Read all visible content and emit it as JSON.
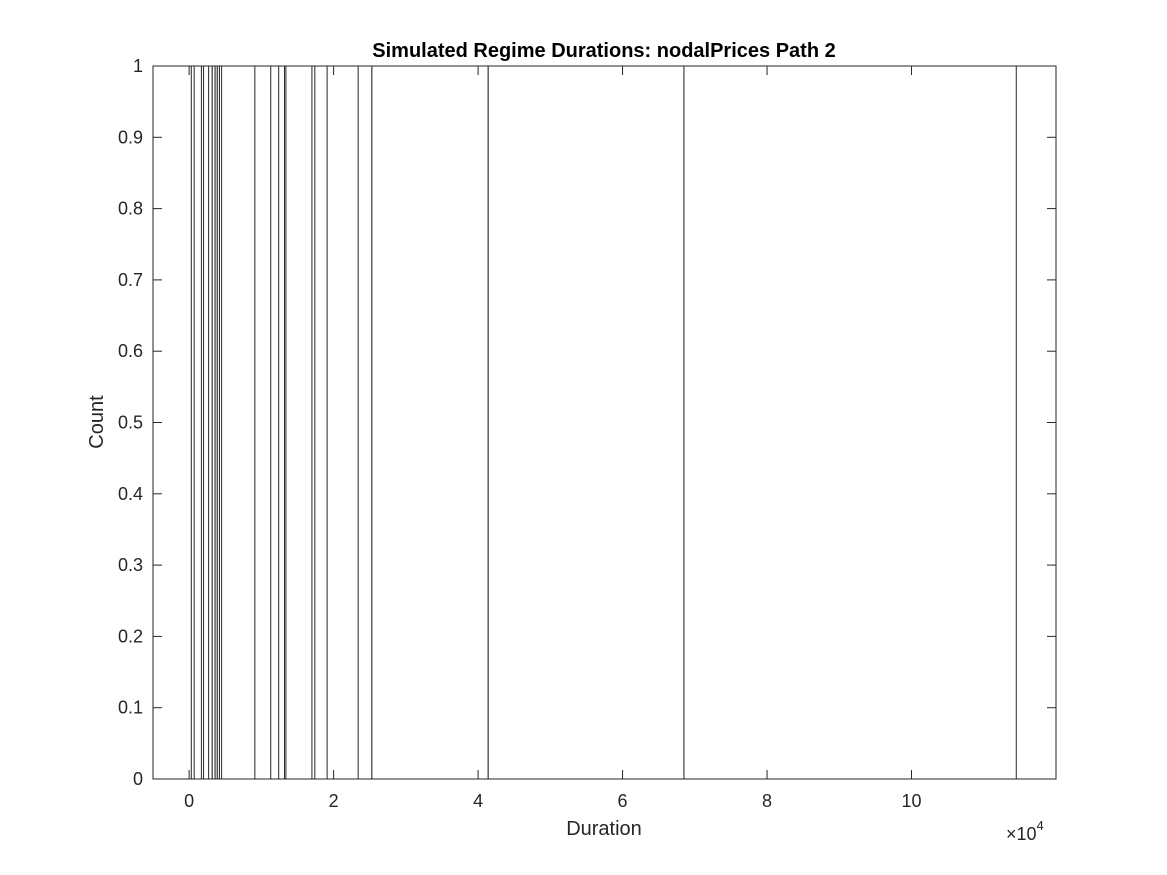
{
  "chart_data": {
    "type": "bar",
    "title": "Simulated Regime Durations: nodalPrices Path 2",
    "xlabel": "Duration",
    "ylabel": "Count",
    "xlim": [
      -0.5,
      12
    ],
    "ylim": [
      0,
      1
    ],
    "x_scale_exponent": {
      "base": "×10",
      "power": "4"
    },
    "x_ticks": [
      0,
      2,
      4,
      6,
      8,
      10
    ],
    "x_tick_labels": [
      "0",
      "2",
      "4",
      "6",
      "8",
      "10"
    ],
    "y_ticks": [
      0,
      0.1,
      0.2,
      0.3,
      0.4,
      0.5,
      0.6,
      0.7,
      0.8,
      0.9,
      1
    ],
    "y_tick_labels": [
      "0",
      "0.1",
      "0.2",
      "0.3",
      "0.4",
      "0.5",
      "0.6",
      "0.7",
      "0.8",
      "0.9",
      "1"
    ],
    "bar_edges": [
      0.03,
      0.07,
      0.17,
      0.2,
      0.27,
      0.32,
      0.36,
      0.39,
      0.42,
      0.45,
      0.91,
      1.13,
      1.24,
      1.32,
      1.34,
      1.7,
      1.74,
      1.91,
      2.34,
      2.53,
      4.14,
      6.85,
      11.45
    ],
    "bars": [
      {
        "x0": 0.03,
        "x1": 0.07,
        "value": 1
      },
      {
        "x0": 0.17,
        "x1": 0.2,
        "value": 1
      },
      {
        "x0": 0.27,
        "x1": 0.32,
        "value": 1
      },
      {
        "x0": 0.32,
        "x1": 0.36,
        "value": 1
      },
      {
        "x0": 0.36,
        "x1": 0.39,
        "value": 1
      },
      {
        "x0": 0.39,
        "x1": 0.42,
        "value": 1
      },
      {
        "x0": 0.42,
        "x1": 0.45,
        "value": 1
      },
      {
        "x0": 0.91,
        "x1": 1.13,
        "value": 1
      },
      {
        "x0": 1.24,
        "x1": 1.32,
        "value": 1
      },
      {
        "x0": 1.34,
        "x1": 1.7,
        "value": 1
      },
      {
        "x0": 1.74,
        "x1": 1.91,
        "value": 1
      },
      {
        "x0": 2.34,
        "x1": 2.53,
        "value": 1
      },
      {
        "x0": 2.53,
        "x1": 4.14,
        "value": 1
      },
      {
        "x0": 4.14,
        "x1": 6.85,
        "value": 1
      },
      {
        "x0": 6.85,
        "x1": 11.45,
        "value": 1
      }
    ],
    "bar_fill": "#ffffff",
    "bar_edge_color": "#262626",
    "grid": false
  }
}
